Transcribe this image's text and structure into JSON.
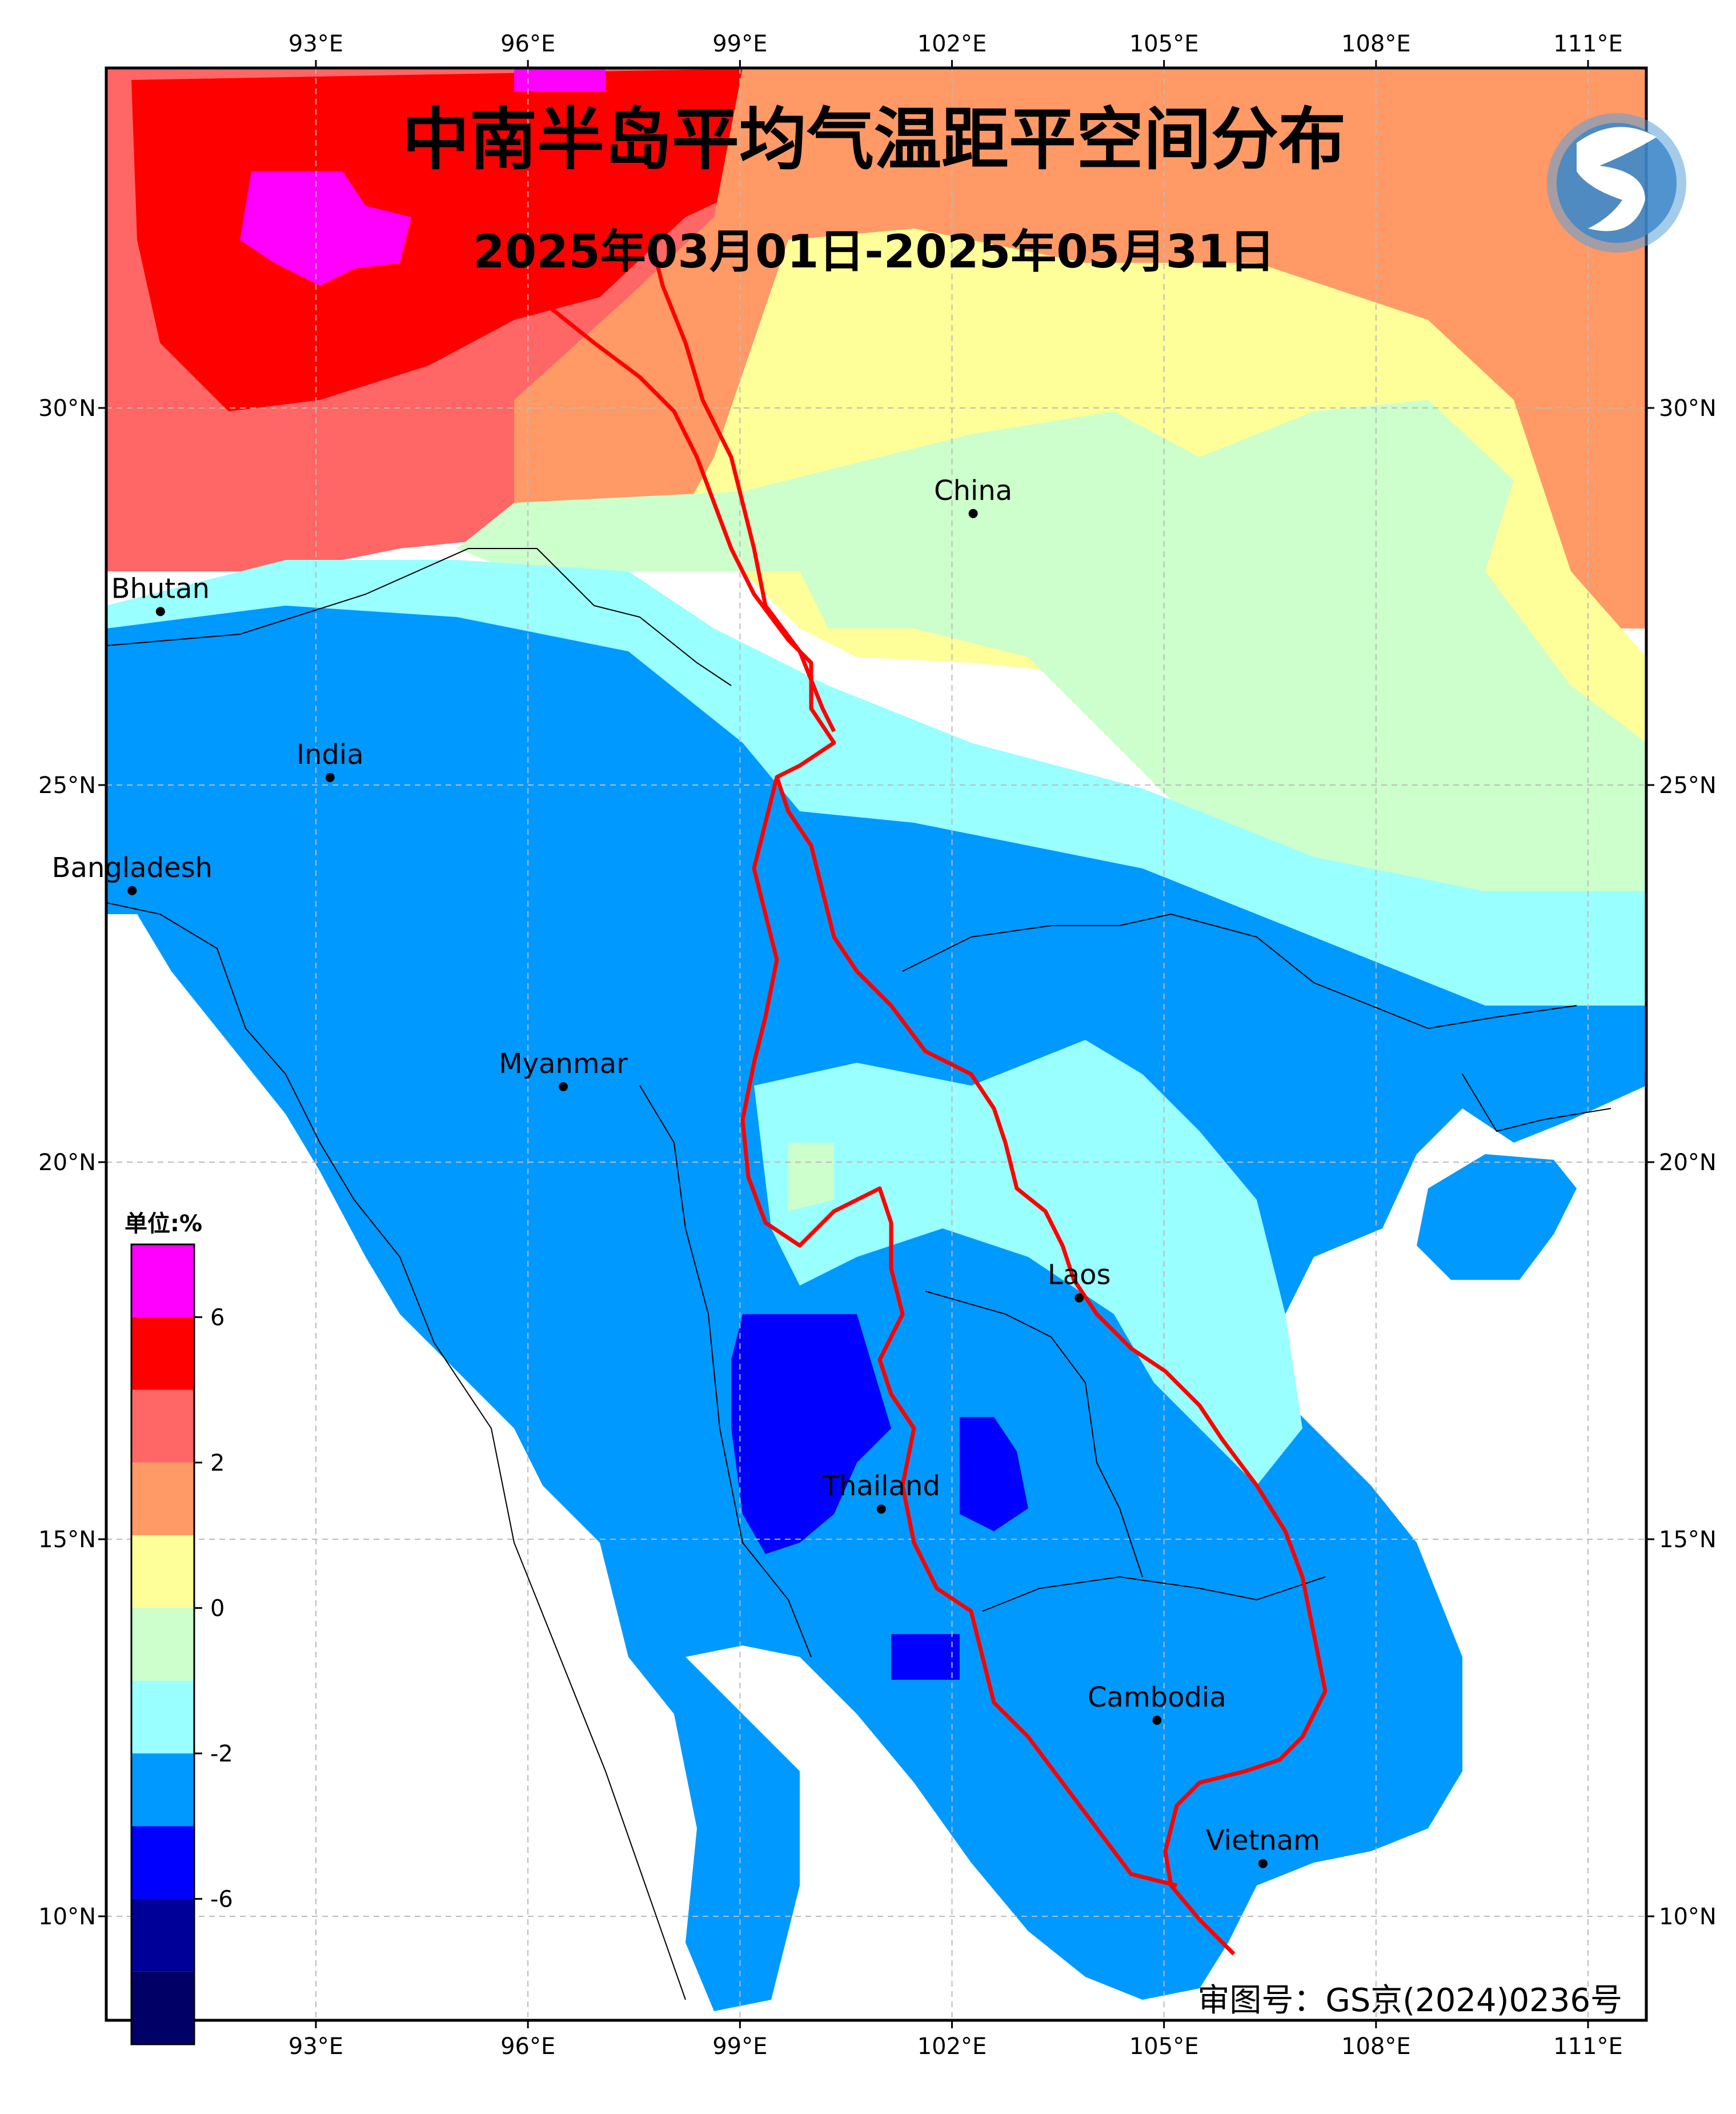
{
  "title": "中南半岛平均气温距平空间分布",
  "subtitle": "2025年03月01日-2025年05月31日",
  "approval": "审图号：GS京(2024)0236号",
  "legend": {
    "unit": "单位:%",
    "labels": [
      "6",
      "2",
      "0",
      "-2",
      "-6"
    ],
    "colors": [
      "#ff00ff",
      "#ff0000",
      "#ff6666",
      "#ff9966",
      "#ffff99",
      "#ccffcc",
      "#99ffff",
      "#0099ff",
      "#0000ff",
      "#000099",
      "#000066"
    ]
  },
  "axes": {
    "lon_ticks": [
      "93°E",
      "96°E",
      "99°E",
      "102°E",
      "105°E",
      "108°E",
      "111°E"
    ],
    "lat_ticks": [
      "30°N",
      "25°N",
      "20°N",
      "15°N",
      "10°N"
    ]
  },
  "places": [
    {
      "name": "China",
      "lon": 102.3,
      "lat": 28.6
    },
    {
      "name": "Bhutan",
      "lon": 90.8,
      "lat": 27.3
    },
    {
      "name": "India",
      "lon": 93.2,
      "lat": 25.1
    },
    {
      "name": "Bangladesh",
      "lon": 90.4,
      "lat": 23.6
    },
    {
      "name": "Myanmar",
      "lon": 96.5,
      "lat": 21.0
    },
    {
      "name": "Laos",
      "lon": 103.8,
      "lat": 18.2
    },
    {
      "name": "Thailand",
      "lon": 101.0,
      "lat": 15.4
    },
    {
      "name": "Cambodia",
      "lon": 104.9,
      "lat": 12.6
    },
    {
      "name": "Vietnam",
      "lon": 106.4,
      "lat": 10.7
    }
  ],
  "colors": {
    "river": "#ff0000",
    "grid": "#bbbbbb"
  }
}
